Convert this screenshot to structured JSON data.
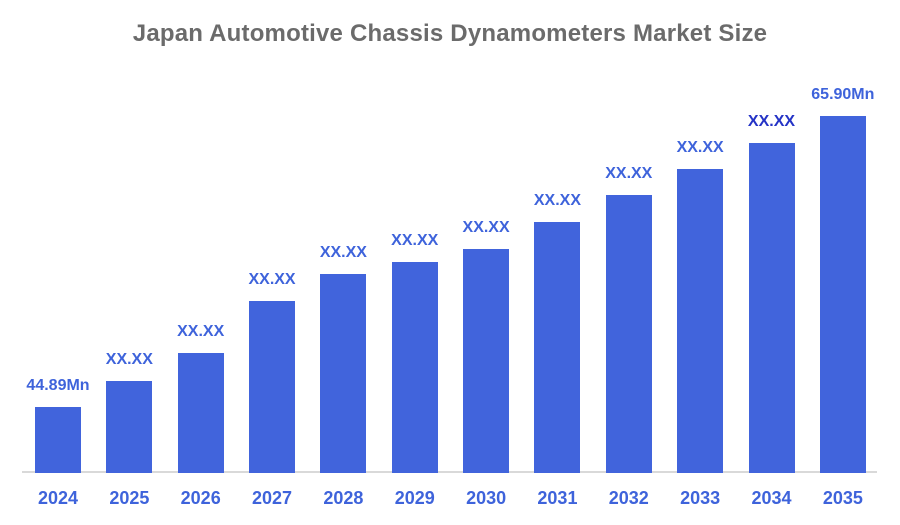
{
  "title": "Japan Automotive Chassis Dynamometers Market Size",
  "colors": {
    "background": "#FFFFFF",
    "bar": "#4164DC",
    "value_label": "#3E63DB",
    "value_label_emphasis": "#2433C6",
    "axis_label": "#3E63DB",
    "title_text": "#6B6B6B",
    "axis_line": "#D9D9D9"
  },
  "chart_data": {
    "type": "bar",
    "title": "Japan Automotive Chassis Dynamometers Market Size",
    "categories": [
      "2024",
      "2025",
      "2026",
      "2027",
      "2028",
      "2029",
      "2030",
      "2031",
      "2032",
      "2033",
      "2034",
      "2035"
    ],
    "values": [
      44.89,
      46.76,
      48.78,
      52.54,
      54.49,
      55.35,
      56.29,
      58.24,
      60.19,
      62.07,
      63.95,
      65.9
    ],
    "bar_labels": [
      "44.89Mn",
      "XX.XX",
      "XX.XX",
      "XX.XX",
      "XX.XX",
      "XX.XX",
      "XX.XX",
      "XX.XX",
      "XX.XX",
      "XX.XX",
      "XX.XX",
      "65.90Mn"
    ],
    "emphasized_label_indexes": [
      10
    ],
    "unit": "Mn",
    "xlabel": "",
    "ylabel": "",
    "ylim": [
      40.12,
      66.5
    ],
    "grid": false,
    "legend": false
  }
}
